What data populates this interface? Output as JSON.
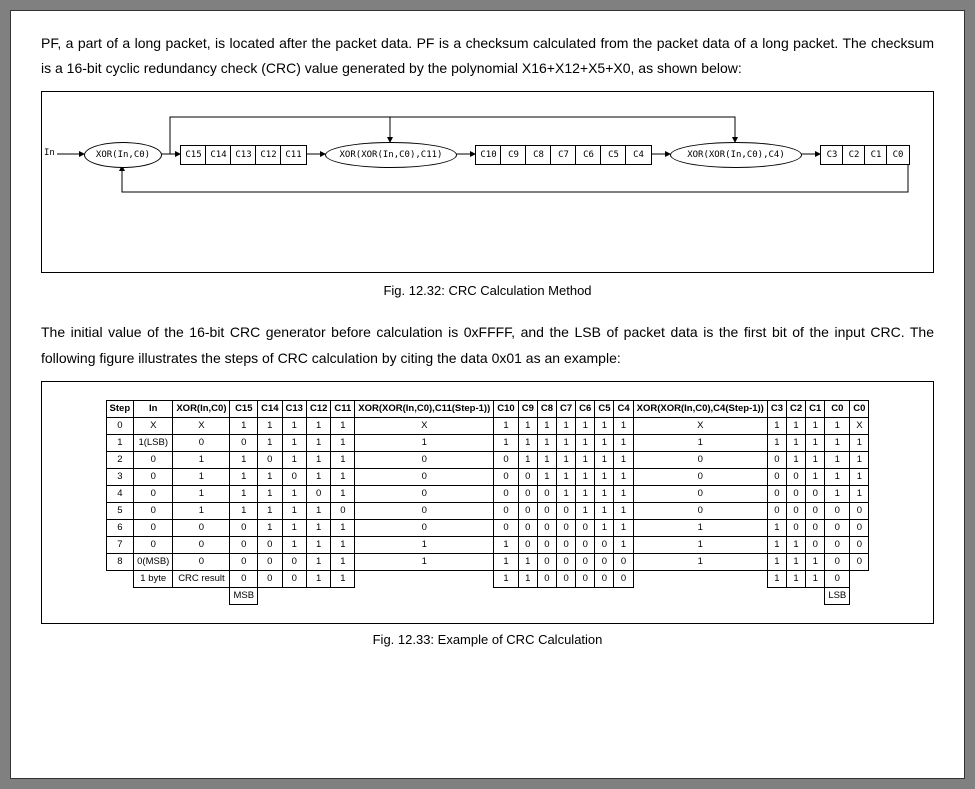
{
  "para1": "PF, a part of a long packet, is located after the packet data. PF is a checksum calculated from the packet data of a long packet. The checksum is a 16-bit cyclic redundancy check (CRC) value generated by the polynomial X16+X12+X5+X0, as shown below:",
  "caption1": "Fig. 12.32: CRC Calculation Method",
  "para2": "The initial value of the 16-bit CRC generator before calculation is 0xFFFF, and the LSB of packet data is the first bit of the input CRC. The following figure illustrates the steps of CRC calculation by citing the data 0x01 as an example:",
  "caption2": "Fig. 12.33: Example of CRC Calculation",
  "diagram": {
    "in_label": "In",
    "xor1": "XOR(In,C0)",
    "block1": [
      "C15",
      "C14",
      "C13",
      "C12",
      "C11"
    ],
    "xor2": "XOR(XOR(In,C0),C11)",
    "block2": [
      "C10",
      "C9",
      "C8",
      "C7",
      "C6",
      "C5",
      "C4"
    ],
    "xor3": "XOR(XOR(In,C0),C4)",
    "block3": [
      "C3",
      "C2",
      "C1",
      "C0"
    ]
  },
  "table": {
    "headers": [
      "Step",
      "In",
      "XOR(In,C0)",
      "C15",
      "C14",
      "C13",
      "C12",
      "C11",
      "XOR(XOR(In,C0),C11(Step-1))",
      "C10",
      "C9",
      "C8",
      "C7",
      "C6",
      "C5",
      "C4",
      "XOR(XOR(In,C0),C4(Step-1))",
      "C3",
      "C2",
      "C1",
      "C0",
      "C0"
    ],
    "rows": [
      [
        "0",
        "X",
        "X",
        "1",
        "1",
        "1",
        "1",
        "1",
        "X",
        "1",
        "1",
        "1",
        "1",
        "1",
        "1",
        "1",
        "X",
        "1",
        "1",
        "1",
        "1",
        "X"
      ],
      [
        "1",
        "1(LSB)",
        "0",
        "0",
        "1",
        "1",
        "1",
        "1",
        "1",
        "1",
        "1",
        "1",
        "1",
        "1",
        "1",
        "1",
        "1",
        "1",
        "1",
        "1",
        "1",
        "1"
      ],
      [
        "2",
        "0",
        "1",
        "1",
        "0",
        "1",
        "1",
        "1",
        "0",
        "0",
        "1",
        "1",
        "1",
        "1",
        "1",
        "1",
        "0",
        "0",
        "1",
        "1",
        "1",
        "1"
      ],
      [
        "3",
        "0",
        "1",
        "1",
        "1",
        "0",
        "1",
        "1",
        "0",
        "0",
        "0",
        "1",
        "1",
        "1",
        "1",
        "1",
        "0",
        "0",
        "0",
        "1",
        "1",
        "1"
      ],
      [
        "4",
        "0",
        "1",
        "1",
        "1",
        "1",
        "0",
        "1",
        "0",
        "0",
        "0",
        "0",
        "1",
        "1",
        "1",
        "1",
        "0",
        "0",
        "0",
        "0",
        "1",
        "1"
      ],
      [
        "5",
        "0",
        "1",
        "1",
        "1",
        "1",
        "1",
        "0",
        "0",
        "0",
        "0",
        "0",
        "0",
        "1",
        "1",
        "1",
        "0",
        "0",
        "0",
        "0",
        "0",
        "0"
      ],
      [
        "6",
        "0",
        "0",
        "0",
        "1",
        "1",
        "1",
        "1",
        "0",
        "0",
        "0",
        "0",
        "0",
        "0",
        "1",
        "1",
        "1",
        "1",
        "0",
        "0",
        "0",
        "0"
      ],
      [
        "7",
        "0",
        "0",
        "0",
        "0",
        "1",
        "1",
        "1",
        "1",
        "1",
        "0",
        "0",
        "0",
        "0",
        "0",
        "1",
        "1",
        "1",
        "1",
        "0",
        "0",
        "0"
      ],
      [
        "8",
        "0(MSB)",
        "0",
        "0",
        "0",
        "0",
        "1",
        "1",
        "1",
        "1",
        "1",
        "0",
        "0",
        "0",
        "0",
        "0",
        "1",
        "1",
        "1",
        "1",
        "0",
        "0"
      ]
    ],
    "footer_left_labels": [
      "1 byte",
      "CRC result"
    ],
    "footer_bits": [
      "0",
      "0",
      "0",
      "1",
      "1",
      "",
      "1",
      "1",
      "0",
      "0",
      "0",
      "0",
      "0",
      "",
      "1",
      "1",
      "1",
      "0"
    ],
    "msb_label": "MSB",
    "lsb_label": "LSB"
  }
}
